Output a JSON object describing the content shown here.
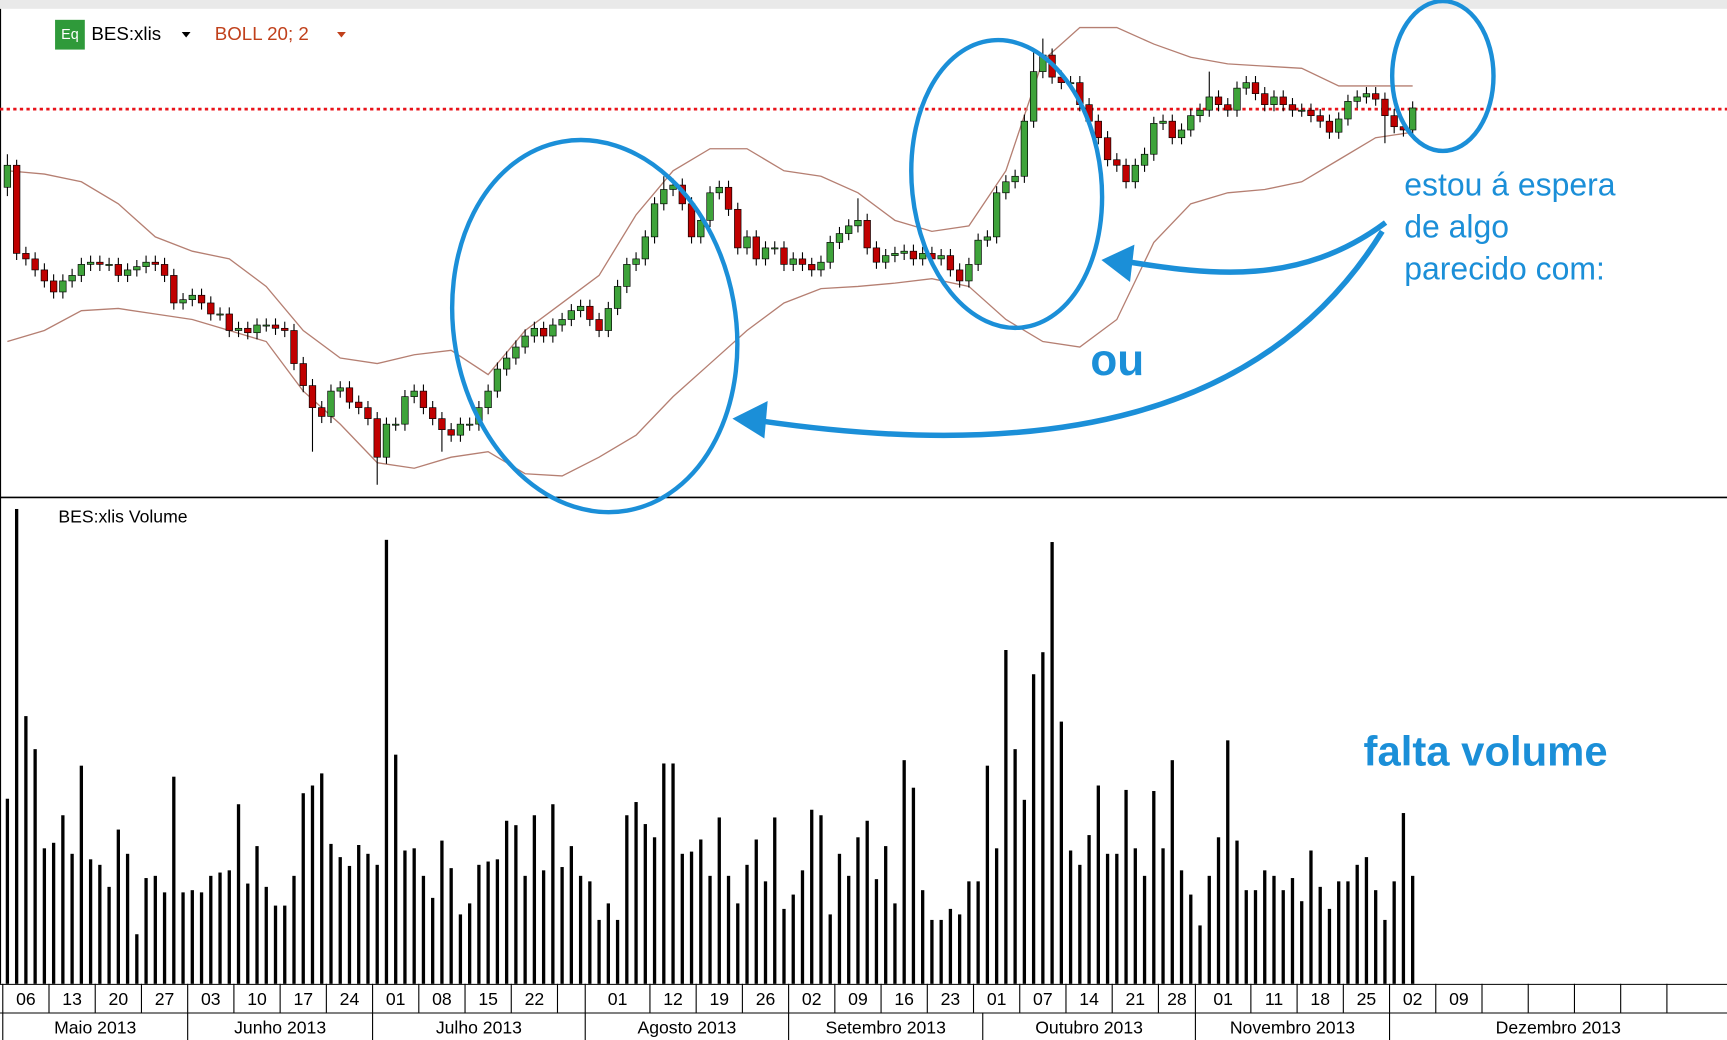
{
  "chart_data": [
    {
      "type": "candlestick",
      "name": "BES:xlis",
      "symbol_badge": "Eq",
      "xlim": [
        -0.8,
        186
      ],
      "ylim": [
        0,
        420
      ],
      "grid": false,
      "up_color": "#3ea33a",
      "down_color": "#c00000",
      "open": [
        280,
        300,
        220,
        215,
        205,
        195,
        185,
        195,
        200,
        210,
        212,
        210,
        210,
        200,
        205,
        208,
        212,
        210,
        200,
        175,
        178,
        182,
        175,
        165,
        165,
        150,
        152,
        148,
        155,
        155,
        152,
        150,
        120,
        100,
        80,
        72,
        95,
        98,
        85,
        80,
        70,
        35,
        65,
        65,
        90,
        95,
        80,
        70,
        60,
        55,
        65,
        65,
        80,
        95,
        115,
        125,
        135,
        145,
        152,
        145,
        155,
        160,
        168,
        172,
        160,
        150,
        170,
        190,
        210,
        215,
        235,
        265,
        278,
        282,
        265,
        235,
        250,
        275,
        280,
        260,
        225,
        235,
        215,
        225,
        225,
        210,
        215,
        210,
        205,
        212,
        230,
        238,
        245,
        250,
        225,
        212,
        218,
        220,
        222,
        215,
        220,
        215,
        218,
        205,
        195,
        210,
        232,
        235,
        275,
        285,
        290,
        340,
        385,
        400,
        380,
        375,
        375,
        355,
        340,
        325,
        305,
        300,
        285,
        300,
        310,
        338,
        340,
        325,
        332,
        345,
        350,
        362,
        355,
        350,
        370,
        375,
        365,
        355,
        362,
        355,
        350,
        350,
        345,
        340,
        330,
        342,
        358,
        362,
        365,
        360,
        345,
        335,
        332
      ],
      "high": [
        310,
        305,
        226,
        221,
        211,
        201,
        201,
        206,
        216,
        218,
        218,
        216,
        216,
        211,
        214,
        218,
        218,
        216,
        206,
        184,
        188,
        188,
        181,
        171,
        171,
        158,
        158,
        161,
        161,
        161,
        158,
        156,
        126,
        106,
        86,
        101,
        104,
        104,
        91,
        86,
        76,
        71,
        71,
        96,
        101,
        101,
        86,
        76,
        66,
        71,
        71,
        86,
        101,
        121,
        131,
        141,
        151,
        158,
        158,
        161,
        166,
        174,
        178,
        178,
        166,
        176,
        196,
        216,
        221,
        241,
        271,
        290,
        288,
        288,
        271,
        256,
        281,
        286,
        286,
        266,
        241,
        241,
        231,
        231,
        231,
        221,
        221,
        216,
        218,
        236,
        244,
        251,
        270,
        256,
        231,
        224,
        226,
        228,
        228,
        226,
        226,
        224,
        224,
        211,
        216,
        238,
        241,
        281,
        291,
        296,
        346,
        405,
        415,
        406,
        386,
        381,
        381,
        361,
        346,
        331,
        311,
        306,
        306,
        316,
        344,
        346,
        346,
        338,
        351,
        356,
        385,
        368,
        361,
        376,
        381,
        381,
        371,
        368,
        368,
        361,
        356,
        356,
        351,
        346,
        348,
        364,
        368,
        371,
        371,
        366,
        351,
        341,
        358
      ],
      "low": [
        272,
        214,
        209,
        199,
        189,
        179,
        179,
        189,
        194,
        204,
        204,
        204,
        194,
        194,
        199,
        202,
        204,
        194,
        169,
        169,
        172,
        169,
        159,
        159,
        144,
        144,
        142,
        142,
        149,
        146,
        144,
        114,
        94,
        40,
        66,
        66,
        89,
        79,
        74,
        64,
        10,
        29,
        59,
        59,
        84,
        74,
        64,
        40,
        49,
        49,
        59,
        59,
        74,
        89,
        109,
        119,
        129,
        139,
        139,
        139,
        149,
        154,
        162,
        154,
        144,
        144,
        164,
        184,
        204,
        209,
        229,
        259,
        272,
        259,
        229,
        229,
        244,
        269,
        254,
        219,
        219,
        209,
        209,
        219,
        204,
        204,
        204,
        199,
        199,
        206,
        224,
        232,
        239,
        219,
        206,
        206,
        212,
        214,
        209,
        209,
        209,
        209,
        199,
        189,
        189,
        204,
        226,
        229,
        269,
        279,
        284,
        334,
        379,
        374,
        369,
        369,
        349,
        334,
        319,
        299,
        294,
        279,
        279,
        294,
        304,
        332,
        319,
        319,
        326,
        339,
        344,
        349,
        344,
        344,
        364,
        359,
        349,
        349,
        349,
        344,
        344,
        339,
        334,
        324,
        324,
        336,
        352,
        356,
        354,
        320,
        329,
        326,
        326
      ],
      "close": [
        300,
        220,
        215,
        205,
        195,
        185,
        195,
        200,
        210,
        212,
        210,
        210,
        200,
        205,
        208,
        212,
        210,
        200,
        175,
        178,
        182,
        175,
        165,
        165,
        150,
        152,
        148,
        155,
        155,
        152,
        150,
        120,
        100,
        80,
        72,
        95,
        98,
        85,
        80,
        70,
        35,
        65,
        65,
        90,
        95,
        80,
        70,
        60,
        55,
        65,
        65,
        80,
        95,
        115,
        125,
        135,
        145,
        152,
        145,
        155,
        160,
        168,
        172,
        160,
        150,
        170,
        190,
        210,
        215,
        235,
        265,
        278,
        282,
        265,
        235,
        250,
        275,
        280,
        260,
        225,
        235,
        215,
        225,
        225,
        210,
        215,
        210,
        205,
        212,
        230,
        238,
        245,
        250,
        225,
        212,
        218,
        220,
        222,
        215,
        220,
        215,
        218,
        205,
        195,
        210,
        232,
        235,
        275,
        285,
        290,
        340,
        385,
        400,
        380,
        375,
        375,
        355,
        340,
        325,
        305,
        300,
        285,
        300,
        310,
        338,
        340,
        325,
        332,
        345,
        350,
        362,
        355,
        350,
        370,
        375,
        365,
        355,
        362,
        355,
        350,
        350,
        345,
        340,
        330,
        342,
        358,
        362,
        365,
        360,
        345,
        335,
        332,
        352
      ],
      "bands": {
        "name": "BOLL 20; 2",
        "color": "#b57f72",
        "x": [
          0,
          4,
          8,
          12,
          16,
          20,
          24,
          28,
          32,
          36,
          40,
          44,
          48,
          52,
          56,
          60,
          64,
          68,
          72,
          76,
          80,
          84,
          88,
          92,
          96,
          100,
          104,
          108,
          112,
          116,
          120,
          124,
          128,
          132,
          136,
          140,
          144,
          148,
          152
        ],
        "upper": [
          295,
          292,
          285,
          265,
          235,
          222,
          215,
          190,
          150,
          125,
          120,
          128,
          132,
          110,
          150,
          175,
          200,
          255,
          295,
          315,
          315,
          295,
          290,
          275,
          250,
          240,
          245,
          295,
          395,
          425,
          425,
          410,
          398,
          392,
          390,
          388,
          372,
          372,
          372
        ],
        "lower": [
          140,
          150,
          168,
          170,
          165,
          160,
          150,
          140,
          95,
          65,
          30,
          25,
          35,
          40,
          20,
          18,
          35,
          55,
          90,
          120,
          150,
          175,
          188,
          190,
          193,
          197,
          190,
          160,
          140,
          135,
          160,
          230,
          265,
          275,
          278,
          285,
          305,
          325,
          330
        ]
      },
      "reference_line": {
        "value": 351,
        "color": "#e8141b"
      },
      "annotations": [
        {
          "lines": [
            "estou á espera",
            "de algo",
            "parecido com:"
          ]
        },
        {
          "lines": [
            "ou"
          ]
        },
        {
          "lines": [
            "falta volume"
          ]
        }
      ]
    },
    {
      "type": "bar",
      "title": "BES:xlis Volume",
      "color": "#000000",
      "xlim": [
        -0.8,
        186
      ],
      "ylim": [
        0,
        433
      ],
      "grid": false,
      "values": [
        168,
        431,
        243,
        213,
        123,
        128,
        153,
        118,
        198,
        113,
        108,
        88,
        140,
        118,
        45,
        96,
        98,
        83,
        188,
        83,
        85,
        83,
        98,
        101,
        103,
        163,
        91,
        125,
        88,
        71,
        71,
        98,
        173,
        180,
        191,
        127,
        115,
        107,
        126,
        118,
        108,
        403,
        208,
        121,
        123,
        98,
        78,
        130,
        105,
        63,
        73,
        108,
        111,
        113,
        148,
        144,
        98,
        153,
        103,
        163,
        106,
        125,
        98,
        93,
        58,
        73,
        58,
        153,
        165,
        145,
        133,
        200,
        200,
        118,
        120,
        131,
        98,
        151,
        98,
        73,
        108,
        131,
        93,
        151,
        68,
        81,
        103,
        158,
        153,
        63,
        118,
        98,
        133,
        148,
        95,
        125,
        73,
        203,
        178,
        85,
        58,
        58,
        68,
        63,
        93,
        93,
        198,
        123,
        303,
        213,
        167,
        281,
        301,
        401,
        238,
        121,
        108,
        135,
        180,
        118,
        118,
        176,
        123,
        98,
        175,
        123,
        203,
        103,
        81,
        53,
        98,
        133,
        221,
        130,
        85,
        85,
        103,
        98,
        85,
        96,
        75,
        121,
        88,
        68,
        93,
        93,
        108,
        115,
        85,
        58,
        93,
        155,
        98
      ],
      "xticks": [
        {
          "value": 0,
          "label": "06"
        },
        {
          "value": 5,
          "label": "13"
        },
        {
          "value": 10,
          "label": "20"
        },
        {
          "value": 15,
          "label": "27"
        },
        {
          "value": 20,
          "label": "03"
        },
        {
          "value": 25,
          "label": "10"
        },
        {
          "value": 30,
          "label": "17"
        },
        {
          "value": 35,
          "label": "24"
        },
        {
          "value": 40,
          "label": "01"
        },
        {
          "value": 45,
          "label": "08"
        },
        {
          "value": 50,
          "label": "15"
        },
        {
          "value": 55,
          "label": "22"
        },
        {
          "value": 60,
          "label": null
        },
        {
          "value": 63,
          "label": "01"
        },
        {
          "value": 70,
          "label": "12"
        },
        {
          "value": 75,
          "label": "19"
        },
        {
          "value": 80,
          "label": "26"
        },
        {
          "value": 85,
          "label": "02"
        },
        {
          "value": 90,
          "label": "09"
        },
        {
          "value": 95,
          "label": "16"
        },
        {
          "value": 100,
          "label": "23"
        },
        {
          "value": 105,
          "label": "01"
        },
        {
          "value": 110,
          "label": "07"
        },
        {
          "value": 115,
          "label": "14"
        },
        {
          "value": 120,
          "label": "21"
        },
        {
          "value": 125,
          "label": "28"
        },
        {
          "value": 129,
          "label": "01"
        },
        {
          "value": 135,
          "label": "11"
        },
        {
          "value": 140,
          "label": "18"
        },
        {
          "value": 145,
          "label": "25"
        },
        {
          "value": 150,
          "label": "02"
        },
        {
          "value": 155,
          "label": "09"
        },
        {
          "value": 160,
          "label": null
        },
        {
          "value": 165,
          "label": null
        },
        {
          "value": 170,
          "label": null
        },
        {
          "value": 175,
          "label": null
        },
        {
          "value": 180,
          "label": null
        }
      ],
      "month_labels": [
        {
          "value": 0,
          "label": "Maio 2013"
        },
        {
          "value": 20,
          "label": "Junho 2013"
        },
        {
          "value": 40,
          "label": "Julho 2013"
        },
        {
          "value": 63,
          "label": "Agosto 2013"
        },
        {
          "value": 85,
          "label": "Setembro 2013"
        },
        {
          "value": 106,
          "label": "Outubro 2013"
        },
        {
          "value": 129,
          "label": "Novembro 2013"
        },
        {
          "value": 150,
          "label": "Dezembro 2013"
        }
      ]
    }
  ]
}
